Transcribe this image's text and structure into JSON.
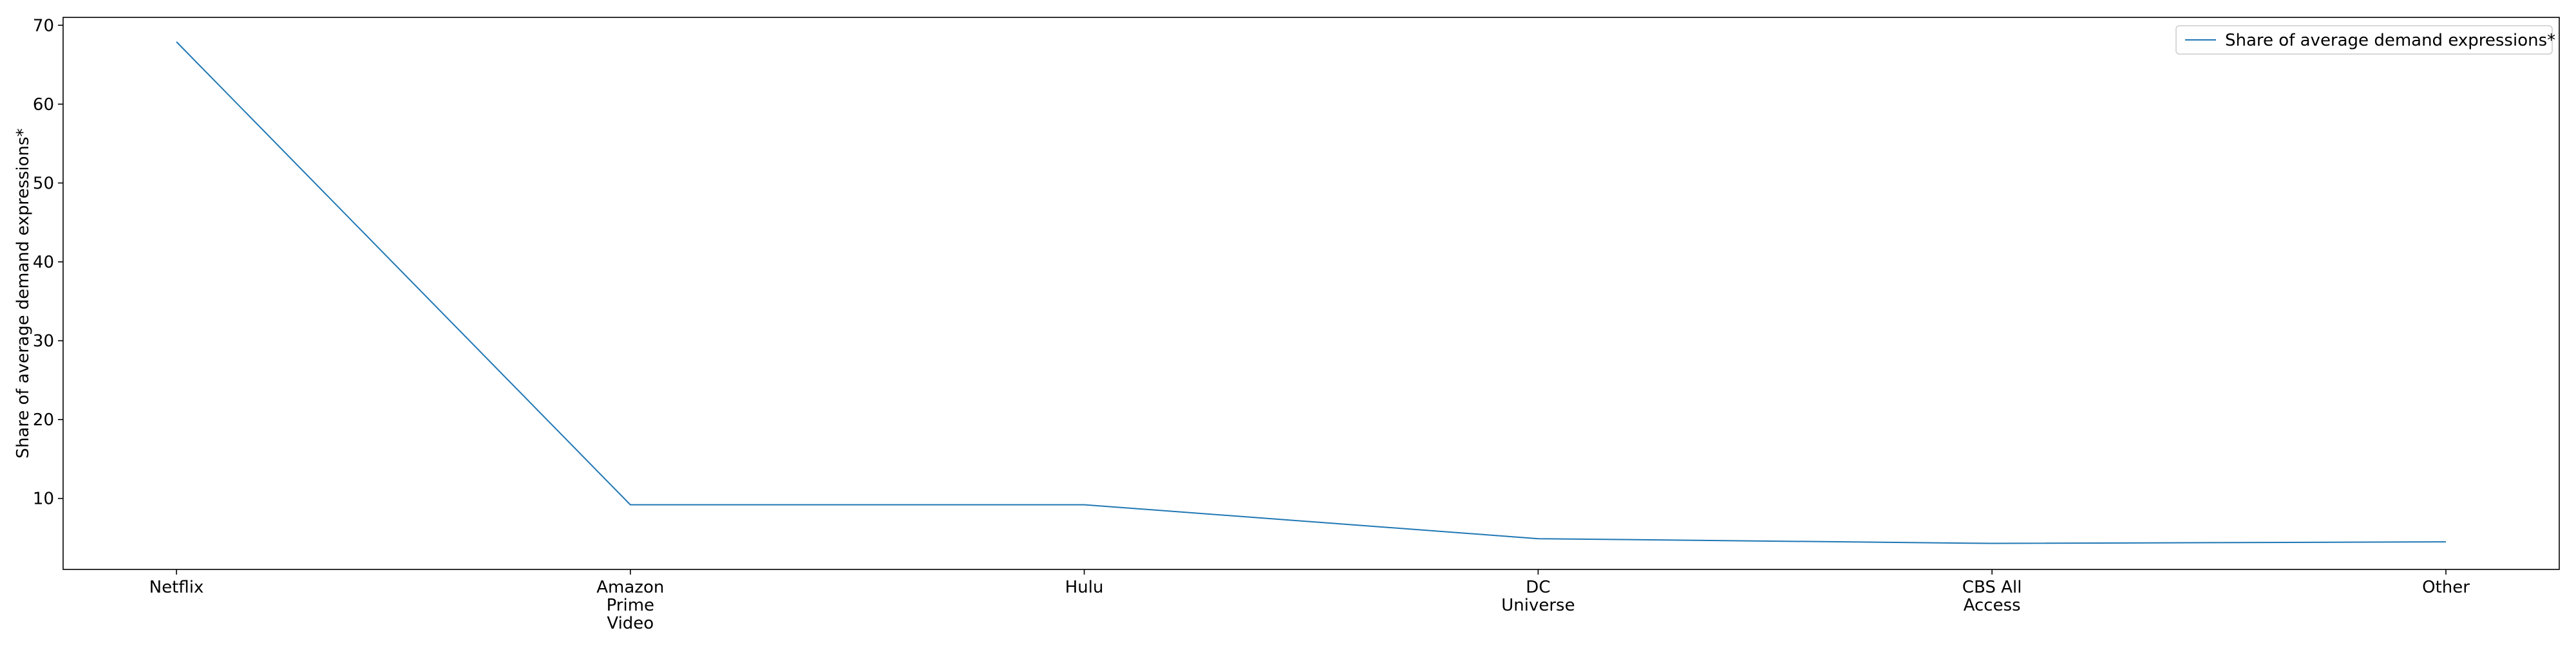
{
  "chart_data": {
    "type": "line",
    "categories": [
      [
        "Netflix"
      ],
      [
        "Amazon",
        "Prime",
        "Video"
      ],
      [
        "Hulu"
      ],
      [
        "DC",
        "Universe"
      ],
      [
        "CBS All",
        "Access"
      ],
      [
        "Other"
      ]
    ],
    "series": [
      {
        "name": "Share of average demand expressions*",
        "values": [
          67.9,
          9.2,
          9.2,
          4.9,
          4.3,
          4.5
        ],
        "color": "#1f77b4"
      }
    ],
    "title": "",
    "xlabel": "",
    "ylabel": "Share of average demand expressions*",
    "ylim": [
      1.0,
      71.0
    ],
    "yticks": [
      10,
      20,
      30,
      40,
      50,
      60,
      70
    ],
    "grid": false,
    "legend_position": "top-right"
  }
}
